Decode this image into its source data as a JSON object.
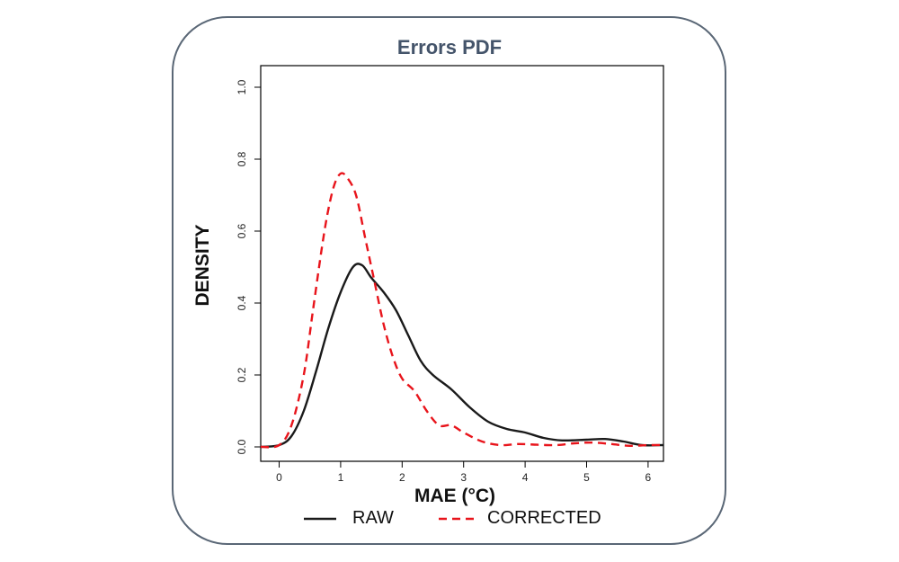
{
  "chart_data": {
    "type": "line",
    "title": "Errors PDF",
    "xlabel": "MAE (°C)",
    "ylabel": "DENSITY",
    "xlim": [
      -0.3,
      6.25
    ],
    "ylim": [
      -0.04,
      1.06
    ],
    "xticks": [
      0,
      1,
      2,
      3,
      4,
      5,
      6
    ],
    "yticks": [
      0.0,
      0.2,
      0.4,
      0.6,
      0.8,
      1.0
    ],
    "ytick_labels": [
      "0.0",
      "0.2",
      "0.4",
      "0.6",
      "0.8",
      "1.0"
    ],
    "grid": false,
    "legend_position": "bottom",
    "series": [
      {
        "name": "RAW",
        "color": "#1a1a1a",
        "style": "solid",
        "x": [
          -0.3,
          0.0,
          0.2,
          0.4,
          0.6,
          0.8,
          1.0,
          1.2,
          1.35,
          1.5,
          1.7,
          1.9,
          2.1,
          2.3,
          2.5,
          2.8,
          3.1,
          3.4,
          3.7,
          4.0,
          4.3,
          4.6,
          5.0,
          5.3,
          5.6,
          5.9,
          6.25
        ],
        "y": [
          0.0,
          0.005,
          0.03,
          0.1,
          0.21,
          0.33,
          0.43,
          0.5,
          0.505,
          0.47,
          0.43,
          0.38,
          0.31,
          0.24,
          0.2,
          0.16,
          0.11,
          0.07,
          0.05,
          0.04,
          0.025,
          0.018,
          0.02,
          0.022,
          0.015,
          0.005,
          0.005
        ]
      },
      {
        "name": "CORRECTED",
        "color": "#e8141b",
        "style": "dashed",
        "x": [
          -0.3,
          0.0,
          0.2,
          0.4,
          0.55,
          0.7,
          0.8,
          0.9,
          1.0,
          1.1,
          1.25,
          1.4,
          1.55,
          1.7,
          1.85,
          2.0,
          2.2,
          2.4,
          2.6,
          2.8,
          3.0,
          3.3,
          3.6,
          3.9,
          4.2,
          4.5,
          4.8,
          5.1,
          5.4,
          5.7,
          6.0,
          6.25
        ],
        "y": [
          0.0,
          0.005,
          0.06,
          0.2,
          0.38,
          0.56,
          0.66,
          0.73,
          0.76,
          0.75,
          0.7,
          0.58,
          0.46,
          0.34,
          0.25,
          0.19,
          0.155,
          0.1,
          0.06,
          0.06,
          0.04,
          0.015,
          0.005,
          0.008,
          0.006,
          0.005,
          0.01,
          0.012,
          0.008,
          0.003,
          0.005,
          0.005
        ]
      }
    ]
  }
}
